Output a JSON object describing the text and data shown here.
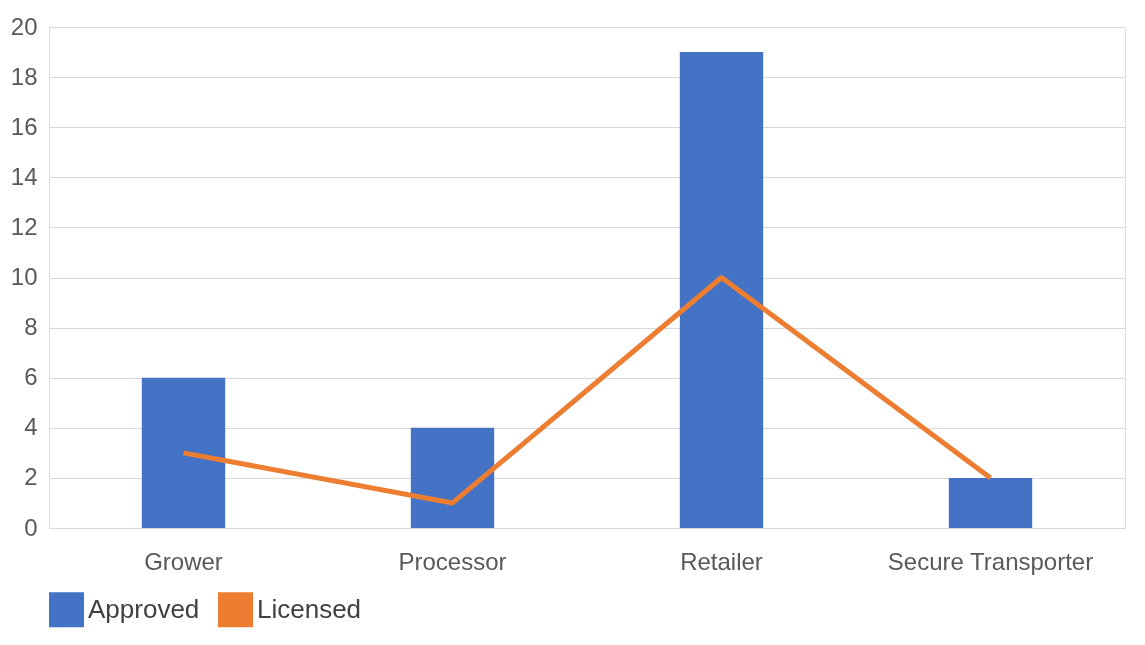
{
  "chart_data": {
    "type": "bar",
    "categories": [
      "Grower",
      "Processor",
      "Retailer",
      "Secure Transporter"
    ],
    "series": [
      {
        "name": "Approved",
        "color": "#4472c4",
        "values": [
          6,
          4,
          19,
          2
        ]
      },
      {
        "name": "Licensed",
        "type": "line",
        "color": "#ed7d31",
        "values": [
          3,
          1,
          10,
          2
        ]
      }
    ],
    "ylim": [
      0,
      20
    ],
    "yticks": [
      0,
      2,
      4,
      6,
      8,
      10,
      12,
      14,
      16,
      18,
      20
    ],
    "grid": "y",
    "legend": "bottom",
    "marker": "none",
    "line_style": "solid"
  }
}
